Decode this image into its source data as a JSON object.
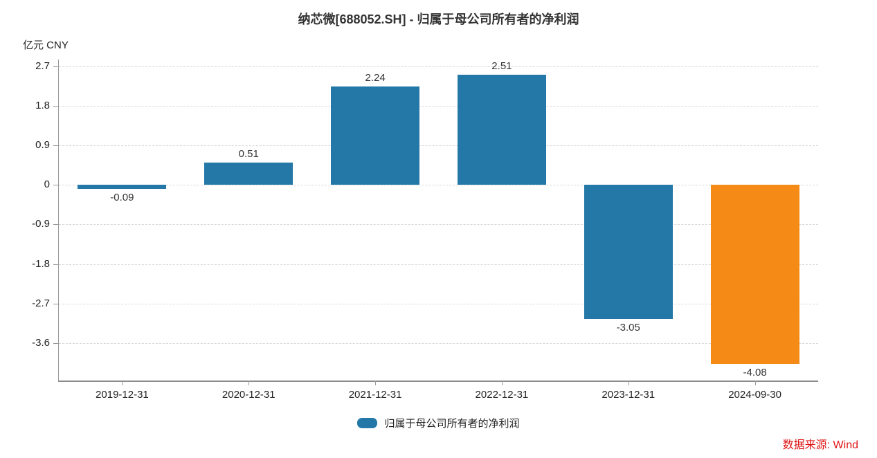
{
  "title": "纳芯微[688052.SH] - 归属于母公司所有者的净利润",
  "y_axis_unit": "亿元 CNY",
  "legend": {
    "label": "归属于母公司所有者的净利润",
    "swatch_color": "#2478A8"
  },
  "source_note": "数据来源: Wind",
  "colors": {
    "bar_default": "#2478A8",
    "bar_highlight": "#F68A17",
    "grid": "#d9d9d9",
    "axis": "#8c8c8c",
    "source_text": "#E01414"
  },
  "chart_data": {
    "type": "bar",
    "title": "纳芯微[688052.SH] - 归属于母公司所有者的净利润",
    "ylabel": "亿元 CNY",
    "xlabel": "",
    "categories": [
      "2019-12-31",
      "2020-12-31",
      "2021-12-31",
      "2022-12-31",
      "2023-12-31",
      "2024-09-30"
    ],
    "values": [
      -0.09,
      0.51,
      2.24,
      2.51,
      -3.05,
      -4.08
    ],
    "bar_colors": [
      "#2478A8",
      "#2478A8",
      "#2478A8",
      "#2478A8",
      "#2478A8",
      "#F68A17"
    ],
    "yticks": [
      2.7,
      1.8,
      0.9,
      0,
      -0.9,
      -1.8,
      -2.7,
      -3.6
    ],
    "ylim": [
      -4.45,
      2.85
    ],
    "grid": "horizontal-dashed",
    "legend": [
      "归属于母公司所有者的净利润"
    ],
    "legend_position": "bottom",
    "data_source": "Wind"
  }
}
